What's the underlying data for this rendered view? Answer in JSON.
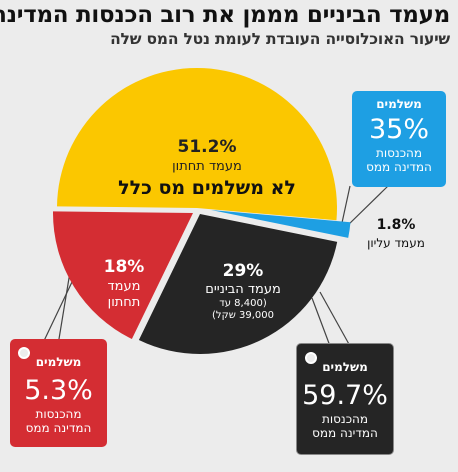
{
  "title": "מעמד הביניים מממן את רוב הכנסות המדינה",
  "subtitle": "שיעור האוכלוסייה העובדת לעומת נטל המס שלה",
  "colors": {
    "lower_nonpaying": "#fbc700",
    "lower_paying": "#d42d33",
    "middle": "#252525",
    "upper": "#1e9fe3",
    "background": "#ececec"
  },
  "chart_data": {
    "type": "pie",
    "title": "שיעור האוכלוסייה העובדת לעומת נטל המס שלה",
    "slices": [
      {
        "key": "lower_nonpaying",
        "value": 51.2,
        "pct_label": "51.2%",
        "name": "מעמד תחתון",
        "note": "לא משלמים מס כלל",
        "color": "#fbc700"
      },
      {
        "key": "lower_paying",
        "value": 18,
        "pct_label": "18%",
        "name_line1": "מעמד",
        "name_line2": "תחתון",
        "color": "#d42d33",
        "tax_share": 5.3
      },
      {
        "key": "middle",
        "value": 29,
        "pct_label": "29%",
        "name": "מעמד הביניים",
        "range_line1": "(8,400 עד",
        "range_line2": "39,000 שקל)",
        "color": "#252525",
        "tax_share": 59.7
      },
      {
        "key": "upper",
        "value": 1.8,
        "pct_label": "1.8%",
        "name": "מעמד עליון",
        "color": "#1e9fe3",
        "tax_share": 35
      }
    ],
    "tags": {
      "upper": {
        "line1": "משלמים",
        "value": "35%",
        "line2": "מהכנסות",
        "line3": "המדינה ממס"
      },
      "lower_paying": {
        "line1": "משלמים",
        "value": "5.3%",
        "line2": "מהכנסות",
        "line3": "המדינה ממס"
      },
      "middle": {
        "line1": "משלמים",
        "value": "59.7%",
        "line2": "מהכנסות",
        "line3": "המדינה ממס"
      }
    }
  }
}
